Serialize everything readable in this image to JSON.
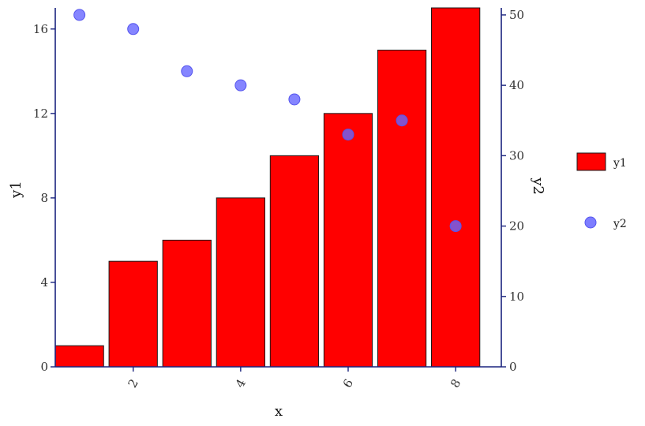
{
  "chart_data": {
    "type": "bar+scatter",
    "x": [
      1,
      2,
      3,
      4,
      5,
      6,
      7,
      8
    ],
    "series": [
      {
        "name": "y1",
        "type": "bar",
        "axis": "left",
        "values": [
          1,
          5,
          6,
          8,
          10,
          12,
          15,
          17
        ]
      },
      {
        "name": "y2",
        "type": "scatter",
        "axis": "right",
        "values": [
          50,
          48,
          42,
          40,
          38,
          33,
          35,
          20
        ]
      }
    ],
    "xlabel": "x",
    "ylabel": "y1",
    "y2label": "y2",
    "xticks": [
      2,
      4,
      6,
      8
    ],
    "yticks": [
      0,
      4,
      8,
      12,
      16
    ],
    "y2ticks": [
      0,
      10,
      20,
      30,
      40,
      50
    ],
    "xlim": [
      0.55,
      8.85
    ],
    "ylim": [
      0,
      17
    ],
    "y2lim": [
      0,
      51
    ],
    "legend": {
      "position": "right",
      "entries": [
        "y1",
        "y2"
      ]
    },
    "colors": {
      "bar_fill": "#ff0000",
      "bar_stroke": "#1a1a1a",
      "point_fill": "#6666ff",
      "axis": "#1a237e"
    },
    "grid": false
  }
}
